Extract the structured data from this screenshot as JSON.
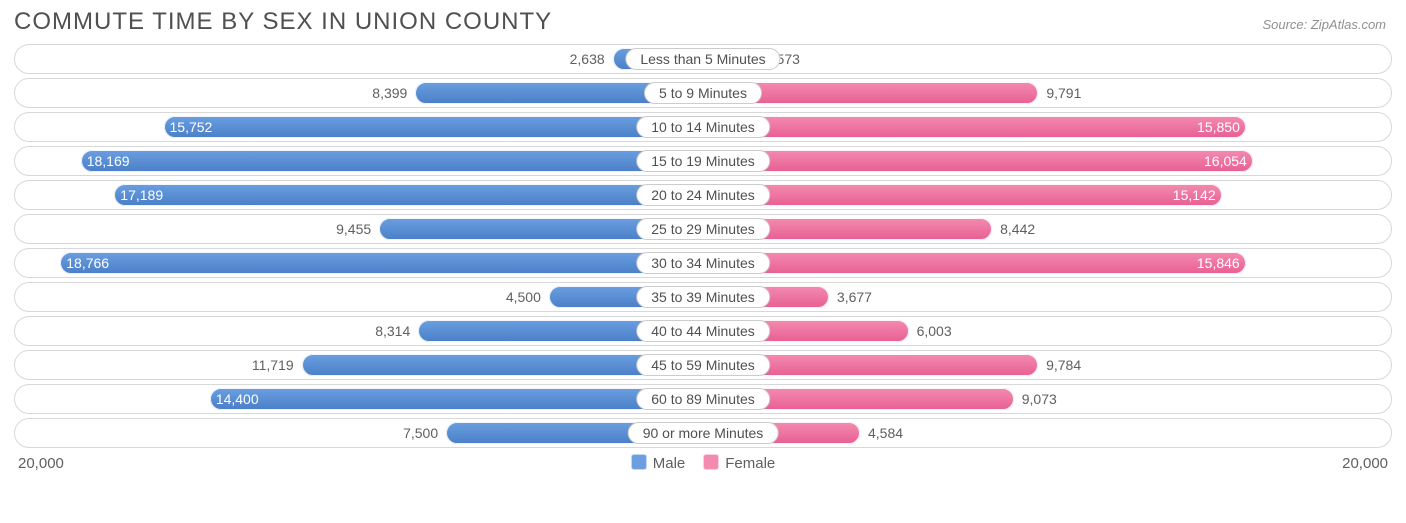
{
  "title": "COMMUTE TIME BY SEX IN UNION COUNTY",
  "source": "Source: ZipAtlas.com",
  "axis_max": 20000,
  "axis_label_left": "20,000",
  "axis_label_right": "20,000",
  "legend": {
    "male": {
      "label": "Male",
      "color": "#6b9fe0",
      "dark": "#4a7fc8"
    },
    "female": {
      "label": "Female",
      "color": "#f38bb0",
      "dark": "#e85f93"
    }
  },
  "inside_threshold": 13500,
  "label_fontsize": 14,
  "title_fontsize": 24,
  "border_color": "#d8d8d8",
  "text_color": "#606060",
  "rows": [
    {
      "category": "Less than 5 Minutes",
      "male": 2638,
      "male_label": "2,638",
      "female": 1573,
      "female_label": "1,573"
    },
    {
      "category": "5 to 9 Minutes",
      "male": 8399,
      "male_label": "8,399",
      "female": 9791,
      "female_label": "9,791"
    },
    {
      "category": "10 to 14 Minutes",
      "male": 15752,
      "male_label": "15,752",
      "female": 15850,
      "female_label": "15,850"
    },
    {
      "category": "15 to 19 Minutes",
      "male": 18169,
      "male_label": "18,169",
      "female": 16054,
      "female_label": "16,054"
    },
    {
      "category": "20 to 24 Minutes",
      "male": 17189,
      "male_label": "17,189",
      "female": 15142,
      "female_label": "15,142"
    },
    {
      "category": "25 to 29 Minutes",
      "male": 9455,
      "male_label": "9,455",
      "female": 8442,
      "female_label": "8,442"
    },
    {
      "category": "30 to 34 Minutes",
      "male": 18766,
      "male_label": "18,766",
      "female": 15846,
      "female_label": "15,846"
    },
    {
      "category": "35 to 39 Minutes",
      "male": 4500,
      "male_label": "4,500",
      "female": 3677,
      "female_label": "3,677"
    },
    {
      "category": "40 to 44 Minutes",
      "male": 8314,
      "male_label": "8,314",
      "female": 6003,
      "female_label": "6,003"
    },
    {
      "category": "45 to 59 Minutes",
      "male": 11719,
      "male_label": "11,719",
      "female": 9784,
      "female_label": "9,784"
    },
    {
      "category": "60 to 89 Minutes",
      "male": 14400,
      "male_label": "14,400",
      "female": 9073,
      "female_label": "9,073"
    },
    {
      "category": "90 or more Minutes",
      "male": 7500,
      "male_label": "7,500",
      "female": 4584,
      "female_label": "4,584"
    }
  ]
}
